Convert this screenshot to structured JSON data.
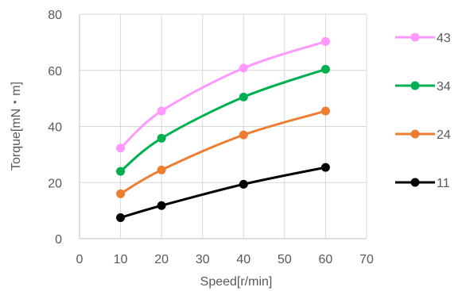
{
  "chart_data": {
    "type": "line",
    "title": "",
    "xlabel": "Speed[r/min]",
    "ylabel": "Torque[mN・m]",
    "xlim": [
      0,
      70
    ],
    "ylim": [
      0,
      80
    ],
    "xticks": [
      0,
      10,
      20,
      30,
      40,
      50,
      60,
      70
    ],
    "yticks": [
      0,
      20,
      40,
      60,
      80
    ],
    "xtick_labels": [
      "0",
      "10",
      "20",
      "30",
      "40",
      "50",
      "60",
      "70"
    ],
    "ytick_labels": [
      "0",
      "20",
      "40",
      "60",
      "80"
    ],
    "grid": "vertical-and-horizontal",
    "legend_position": "right",
    "x": [
      10,
      20,
      40,
      60
    ],
    "series": [
      {
        "name": "43",
        "color": "#ff99ff",
        "values": [
          32.3,
          45.5,
          60.8,
          70.3
        ]
      },
      {
        "name": "34",
        "color": "#00b050",
        "values": [
          24.0,
          35.8,
          50.5,
          60.4
        ]
      },
      {
        "name": "24",
        "color": "#ed7d31",
        "values": [
          16.0,
          24.5,
          37.0,
          45.5
        ]
      },
      {
        "name": "11",
        "color": "#000000",
        "values": [
          7.5,
          11.8,
          19.4,
          25.4
        ]
      }
    ]
  }
}
